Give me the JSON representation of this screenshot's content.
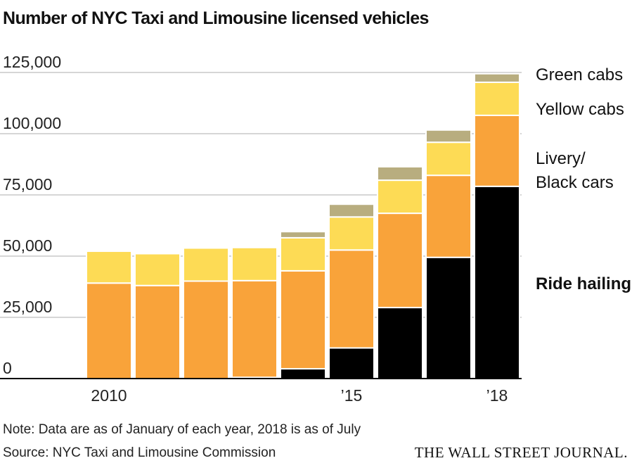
{
  "chart_data": {
    "type": "bar",
    "stacked": true,
    "title": "Number of NYC Taxi and Limousine licensed vehicles",
    "categories": [
      "2010",
      "2011",
      "2012",
      "2013",
      "2014",
      "2015",
      "2016",
      "2017",
      "2018"
    ],
    "x_tick_labels": [
      "2010",
      "",
      "",
      "",
      "",
      "’15",
      "",
      "",
      "’18"
    ],
    "series": [
      {
        "name": "Ride hailing",
        "color": "#000000",
        "values": [
          0,
          0,
          0,
          500,
          4000,
          12500,
          29000,
          49500,
          78500
        ]
      },
      {
        "name": "Livery/ Black cars",
        "color": "#F9A33A",
        "values": [
          39000,
          38000,
          39800,
          39500,
          40000,
          40000,
          38500,
          33500,
          29000
        ]
      },
      {
        "name": "Yellow cabs",
        "color": "#FDDB55",
        "values": [
          13000,
          13000,
          13500,
          13500,
          13500,
          13500,
          13500,
          13500,
          13500
        ]
      },
      {
        "name": "Green cabs",
        "color": "#B8AD7F",
        "values": [
          0,
          0,
          0,
          0,
          2500,
          5200,
          5500,
          5000,
          3500
        ]
      }
    ],
    "y_ticks": [
      0,
      25000,
      50000,
      75000,
      100000,
      125000
    ],
    "y_tick_labels": [
      "0",
      "25,000",
      "50,000",
      "75,000",
      "100,000",
      "125,000"
    ],
    "ylim": [
      0,
      125000
    ],
    "grid": true,
    "legend_placement": "right",
    "xlabel": "",
    "ylabel": ""
  },
  "notes": {
    "note": "Note: Data are as of January of each year, 2018 is as of July",
    "source": "Source: NYC Taxi and Limousine Commission",
    "publisher": "THE WALL STREET JOURNAL."
  }
}
